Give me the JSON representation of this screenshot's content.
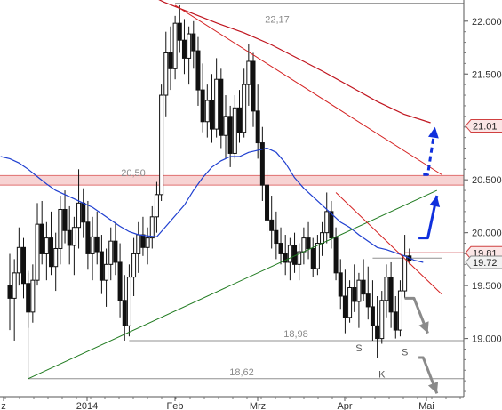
{
  "chart_data": {
    "type": "candlestick",
    "x_labels": [
      "z",
      "2014",
      "Feb",
      "Mrz",
      "Apr",
      "Mai"
    ],
    "y_ticks": [
      19.0,
      19.5,
      20.0,
      20.5,
      21.0,
      21.5,
      22.0
    ],
    "y_tick_labels": [
      "19.000",
      "19.500",
      "20.000",
      "20.500",
      "21.000",
      "21.500",
      "22.000"
    ],
    "ylim": [
      18.45,
      22.2
    ],
    "grid": false,
    "candles": [
      {
        "o": 19.5,
        "h": 19.8,
        "l": 19.08,
        "c": 19.38
      },
      {
        "o": 19.38,
        "h": 19.75,
        "l": 18.98,
        "c": 19.62
      },
      {
        "o": 19.62,
        "h": 20.05,
        "l": 19.5,
        "c": 19.86
      },
      {
        "o": 19.86,
        "h": 19.95,
        "l": 19.38,
        "c": 19.52
      },
      {
        "o": 19.52,
        "h": 19.64,
        "l": 19.1,
        "c": 19.25
      },
      {
        "o": 19.25,
        "h": 19.7,
        "l": 19.15,
        "c": 19.55
      },
      {
        "o": 19.55,
        "h": 20.28,
        "l": 19.5,
        "c": 20.08
      },
      {
        "o": 20.08,
        "h": 20.3,
        "l": 19.7,
        "c": 19.8
      },
      {
        "o": 19.8,
        "h": 20.1,
        "l": 19.55,
        "c": 19.95
      },
      {
        "o": 19.95,
        "h": 20.2,
        "l": 19.6,
        "c": 19.68
      },
      {
        "o": 19.68,
        "h": 20.0,
        "l": 19.45,
        "c": 19.85
      },
      {
        "o": 19.85,
        "h": 20.35,
        "l": 19.7,
        "c": 20.22
      },
      {
        "o": 20.22,
        "h": 20.4,
        "l": 19.9,
        "c": 20.02
      },
      {
        "o": 20.02,
        "h": 20.25,
        "l": 19.7,
        "c": 19.88
      },
      {
        "o": 19.88,
        "h": 20.15,
        "l": 19.6,
        "c": 20.05
      },
      {
        "o": 20.05,
        "h": 20.6,
        "l": 19.85,
        "c": 20.28
      },
      {
        "o": 20.28,
        "h": 20.42,
        "l": 19.95,
        "c": 20.1
      },
      {
        "o": 20.1,
        "h": 20.3,
        "l": 19.65,
        "c": 19.8
      },
      {
        "o": 19.8,
        "h": 20.15,
        "l": 19.55,
        "c": 19.96
      },
      {
        "o": 19.96,
        "h": 20.2,
        "l": 19.7,
        "c": 19.82
      },
      {
        "o": 19.82,
        "h": 19.98,
        "l": 19.42,
        "c": 19.55
      },
      {
        "o": 19.55,
        "h": 19.85,
        "l": 19.3,
        "c": 19.7
      },
      {
        "o": 19.7,
        "h": 20.05,
        "l": 19.55,
        "c": 19.92
      },
      {
        "o": 19.92,
        "h": 20.1,
        "l": 19.6,
        "c": 19.72
      },
      {
        "o": 19.72,
        "h": 19.9,
        "l": 19.2,
        "c": 19.36
      },
      {
        "o": 19.36,
        "h": 19.6,
        "l": 18.98,
        "c": 19.12
      },
      {
        "o": 19.12,
        "h": 19.7,
        "l": 19.02,
        "c": 19.58
      },
      {
        "o": 19.58,
        "h": 19.95,
        "l": 19.4,
        "c": 19.8
      },
      {
        "o": 19.8,
        "h": 20.1,
        "l": 19.62,
        "c": 19.98
      },
      {
        "o": 19.98,
        "h": 20.15,
        "l": 19.78,
        "c": 19.86
      },
      {
        "o": 19.86,
        "h": 20.05,
        "l": 19.7,
        "c": 19.95
      },
      {
        "o": 19.95,
        "h": 20.25,
        "l": 19.85,
        "c": 20.15
      },
      {
        "o": 20.15,
        "h": 20.48,
        "l": 20.0,
        "c": 20.36
      },
      {
        "o": 20.36,
        "h": 21.4,
        "l": 20.3,
        "c": 21.3
      },
      {
        "o": 21.3,
        "h": 21.9,
        "l": 21.1,
        "c": 21.7
      },
      {
        "o": 21.7,
        "h": 21.95,
        "l": 21.35,
        "c": 21.55
      },
      {
        "o": 21.55,
        "h": 22.05,
        "l": 21.45,
        "c": 21.98
      },
      {
        "o": 21.98,
        "h": 22.15,
        "l": 21.7,
        "c": 21.82
      },
      {
        "o": 21.82,
        "h": 22.02,
        "l": 21.5,
        "c": 21.65
      },
      {
        "o": 21.65,
        "h": 21.95,
        "l": 21.4,
        "c": 21.88
      },
      {
        "o": 21.88,
        "h": 22.0,
        "l": 21.55,
        "c": 21.72
      },
      {
        "o": 21.72,
        "h": 21.85,
        "l": 21.2,
        "c": 21.35
      },
      {
        "o": 21.35,
        "h": 21.6,
        "l": 20.95,
        "c": 21.05
      },
      {
        "o": 21.05,
        "h": 21.4,
        "l": 20.9,
        "c": 21.25
      },
      {
        "o": 21.25,
        "h": 21.5,
        "l": 20.85,
        "c": 20.98
      },
      {
        "o": 20.98,
        "h": 21.65,
        "l": 20.9,
        "c": 21.45
      },
      {
        "o": 21.45,
        "h": 21.55,
        "l": 20.8,
        "c": 20.92
      },
      {
        "o": 20.92,
        "h": 21.3,
        "l": 20.7,
        "c": 21.1
      },
      {
        "o": 21.1,
        "h": 21.2,
        "l": 20.62,
        "c": 20.75
      },
      {
        "o": 20.75,
        "h": 21.3,
        "l": 20.7,
        "c": 21.18
      },
      {
        "o": 21.18,
        "h": 21.35,
        "l": 20.85,
        "c": 20.95
      },
      {
        "o": 20.95,
        "h": 21.55,
        "l": 20.9,
        "c": 21.4
      },
      {
        "o": 21.4,
        "h": 21.78,
        "l": 21.2,
        "c": 21.62
      },
      {
        "o": 21.62,
        "h": 21.7,
        "l": 21.0,
        "c": 21.15
      },
      {
        "o": 21.15,
        "h": 21.4,
        "l": 20.7,
        "c": 20.85
      },
      {
        "o": 20.85,
        "h": 21.0,
        "l": 20.3,
        "c": 20.45
      },
      {
        "o": 20.45,
        "h": 20.6,
        "l": 20.0,
        "c": 20.12
      },
      {
        "o": 20.12,
        "h": 20.35,
        "l": 19.85,
        "c": 20.02
      },
      {
        "o": 20.02,
        "h": 20.2,
        "l": 19.75,
        "c": 19.9
      },
      {
        "o": 19.9,
        "h": 20.05,
        "l": 19.7,
        "c": 19.8
      },
      {
        "o": 19.8,
        "h": 19.98,
        "l": 19.6,
        "c": 19.72
      },
      {
        "o": 19.72,
        "h": 19.95,
        "l": 19.55,
        "c": 19.88
      },
      {
        "o": 19.88,
        "h": 20.0,
        "l": 19.62,
        "c": 19.7
      },
      {
        "o": 19.7,
        "h": 19.9,
        "l": 19.55,
        "c": 19.82
      },
      {
        "o": 19.82,
        "h": 20.05,
        "l": 19.7,
        "c": 19.95
      },
      {
        "o": 19.95,
        "h": 20.1,
        "l": 19.75,
        "c": 19.85
      },
      {
        "o": 19.85,
        "h": 19.95,
        "l": 19.58,
        "c": 19.66
      },
      {
        "o": 19.66,
        "h": 19.98,
        "l": 19.6,
        "c": 19.9
      },
      {
        "o": 19.9,
        "h": 20.1,
        "l": 19.78,
        "c": 20.0
      },
      {
        "o": 20.0,
        "h": 20.38,
        "l": 19.9,
        "c": 20.2
      },
      {
        "o": 20.2,
        "h": 20.3,
        "l": 19.85,
        "c": 19.95
      },
      {
        "o": 19.95,
        "h": 20.05,
        "l": 19.55,
        "c": 19.62
      },
      {
        "o": 19.62,
        "h": 19.75,
        "l": 19.28,
        "c": 19.4
      },
      {
        "o": 19.4,
        "h": 19.65,
        "l": 19.05,
        "c": 19.2
      },
      {
        "o": 19.2,
        "h": 19.55,
        "l": 19.15,
        "c": 19.48
      },
      {
        "o": 19.48,
        "h": 19.7,
        "l": 19.25,
        "c": 19.35
      },
      {
        "o": 19.35,
        "h": 19.62,
        "l": 19.1,
        "c": 19.55
      },
      {
        "o": 19.55,
        "h": 19.75,
        "l": 19.35,
        "c": 19.42
      },
      {
        "o": 19.42,
        "h": 19.68,
        "l": 19.18,
        "c": 19.3
      },
      {
        "o": 19.3,
        "h": 19.55,
        "l": 18.98,
        "c": 19.12
      },
      {
        "o": 19.12,
        "h": 19.4,
        "l": 18.82,
        "c": 19.0
      },
      {
        "o": 19.0,
        "h": 19.45,
        "l": 18.95,
        "c": 19.36
      },
      {
        "o": 19.36,
        "h": 19.7,
        "l": 19.2,
        "c": 19.58
      },
      {
        "o": 19.58,
        "h": 19.72,
        "l": 19.1,
        "c": 19.25
      },
      {
        "o": 19.25,
        "h": 19.4,
        "l": 19.0,
        "c": 19.08
      },
      {
        "o": 19.08,
        "h": 19.55,
        "l": 19.02,
        "c": 19.45
      },
      {
        "o": 19.45,
        "h": 19.98,
        "l": 19.38,
        "c": 19.78
      },
      {
        "o": 19.78,
        "h": 19.85,
        "l": 19.7,
        "c": 19.74
      }
    ],
    "lines": [
      {
        "name": "blue-moving-average",
        "color": "#1f3fd0",
        "y": [
          20.72,
          20.7,
          20.66,
          20.6,
          20.53,
          20.46,
          20.4,
          20.36,
          20.32,
          20.28,
          20.24,
          20.18,
          20.12,
          20.06,
          20.01,
          19.98,
          19.97,
          19.96,
          20.06,
          20.16,
          20.26,
          20.4,
          20.52,
          20.62,
          20.68,
          20.72,
          20.72,
          20.76,
          20.78,
          20.8,
          20.76,
          20.66,
          20.52,
          20.42,
          20.34,
          20.26,
          20.18,
          20.1,
          20.05,
          19.98,
          19.92,
          19.86,
          19.84,
          19.81,
          19.78,
          19.74,
          19.72
        ]
      },
      {
        "name": "red-moving-average",
        "color": "#c0141e",
        "y": [
          22.45,
          22.3,
          22.18,
          22.08,
          21.98,
          21.89,
          21.78,
          21.65,
          21.52,
          21.38,
          21.24,
          21.12,
          21.04
        ]
      }
    ],
    "trendlines": [
      {
        "name": "green-support-trendline",
        "color": "#1e7a1e",
        "from": {
          "i": 4,
          "y": 18.62
        },
        "to": {
          "i": 93,
          "y": 20.4
        }
      },
      {
        "name": "red-resistance-trendline",
        "color": "#d42020",
        "from": {
          "i": 36,
          "y": 22.15
        },
        "to": {
          "i": 94,
          "y": 20.55
        }
      },
      {
        "name": "red-falling-trendline",
        "color": "#d42020",
        "from": {
          "i": 71,
          "y": 20.38
        },
        "to": {
          "i": 94,
          "y": 19.42
        }
      }
    ],
    "levels": [
      {
        "value": 22.17,
        "label": "22,17"
      },
      {
        "value": 20.5,
        "label": "20,50"
      },
      {
        "value": 18.98,
        "label": "18,98"
      },
      {
        "value": 18.62,
        "label": "18,62"
      }
    ],
    "resistance_zone": {
      "from": 20.45,
      "to": 20.54,
      "color": "#f4c4c4"
    },
    "neckline": {
      "value": 19.76,
      "from_i": 79,
      "to_i": 94
    },
    "pattern_labels": [
      {
        "text": "S",
        "i": 76,
        "y": 18.88
      },
      {
        "text": "K",
        "i": 81,
        "y": 18.63
      },
      {
        "text": "S",
        "i": 86,
        "y": 18.84
      }
    ],
    "price_labels": [
      {
        "value": 21.01,
        "text": "21.01",
        "style": "red"
      },
      {
        "value": 19.81,
        "text": "19.81",
        "style": "red"
      },
      {
        "value": 19.72,
        "text": "19.72",
        "style": "gray"
      }
    ],
    "scenario_arrows": [
      {
        "name": "bullish-arrow",
        "color": "#1030dd",
        "points": [
          {
            "i": 89,
            "y": 19.95
          },
          {
            "i": 91,
            "y": 19.95
          },
          {
            "i": 93,
            "y": 20.35
          }
        ]
      },
      {
        "name": "bullish-dashed-arrow",
        "color": "#1030dd",
        "dashed": true,
        "points": [
          {
            "i": 90,
            "y": 20.55
          },
          {
            "i": 91,
            "y": 20.55
          },
          {
            "i": 92.6,
            "y": 21.0
          }
        ]
      },
      {
        "name": "bearish-arrow",
        "color": "#8a8a8a",
        "points": [
          {
            "i": 86,
            "y": 19.38
          },
          {
            "i": 88,
            "y": 19.38
          },
          {
            "i": 91,
            "y": 19.05
          }
        ]
      },
      {
        "name": "bearish-continuation-arrow",
        "color": "#8a8a8a",
        "points": [
          {
            "i": 89,
            "y": 18.82
          },
          {
            "i": 90,
            "y": 18.82
          },
          {
            "i": 93,
            "y": 18.48
          }
        ]
      }
    ]
  }
}
